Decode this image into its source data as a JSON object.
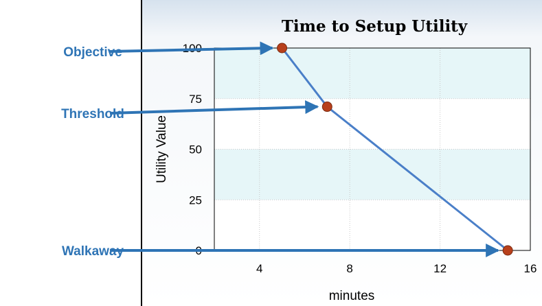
{
  "chart_data": {
    "type": "line",
    "title": "Time to Setup Utility",
    "xlabel": "minutes",
    "ylabel": "Utility Value",
    "xlim": [
      2,
      16
    ],
    "ylim": [
      0,
      100
    ],
    "x_ticks": [
      4,
      8,
      12,
      16
    ],
    "y_ticks": [
      0,
      25,
      50,
      75,
      100
    ],
    "grid": true,
    "x": [
      5,
      7,
      15
    ],
    "y": [
      100,
      71,
      0
    ],
    "colors": {
      "line": "#4a7fc8",
      "marker": "#b8401c",
      "marker_edge": "#7a2a10",
      "band": "#e6f6f8",
      "grid": "#c8c8c8",
      "frame": "#000000",
      "panel": "#e3ecf4"
    }
  },
  "annotations": [
    {
      "label": "Objective",
      "x": 5,
      "y": 100
    },
    {
      "label": "Threshold",
      "x": 7,
      "y": 71
    },
    {
      "label": "Walkaway",
      "x": 15,
      "y": 0
    }
  ],
  "annotation_color": "#2e74b5"
}
